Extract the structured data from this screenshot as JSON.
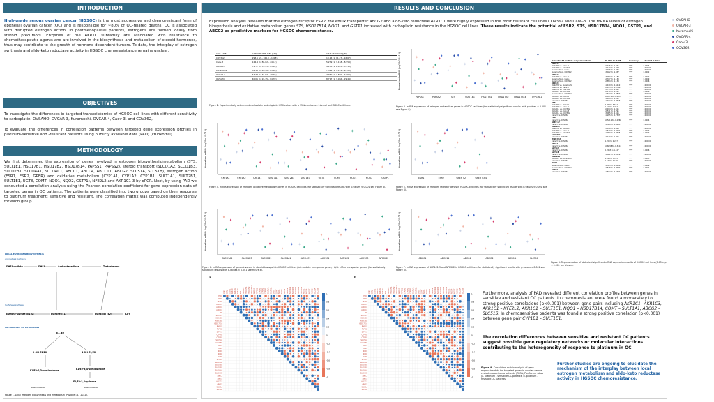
{
  "headers": {
    "intro": "INTRODUCTION",
    "objectives": "OBJECTIVES",
    "methodology": "METHODOLOGY",
    "results": "RESULTS AND CONCLUSION"
  },
  "intro": {
    "lead": "High-grade serous ovarian cancer (HGSOC)",
    "body": " is the most aggressive and chemoresistant form of epithelial ovarian cancer (OC) and is responsible for ~80% of OC-related deaths. OC is associated with disrupted estrogen action. In postmenopausal patients, estrogens are formed locally from steroid precursors. Enzymes of the AKR1C subfamily are associated with resistance to chemotherapeutic agents and are involved in the biosynthesis and metabolism of steroid hormones, thus may contribute to the growth of hormone-dependent tumors. To date, the interplay of estrogen synthesis and aldo-keto reductase activity in HGSOC chemoresistance remains unclear."
  },
  "objectives": {
    "p1": "To investigate the differences in targeted transcriptomics of HGSOC cell lines with different sensitivity to carboplatin: OVSAHO, OVCAR-3, Kuramochi, OVCAR-4, Caov-3, and COV362,",
    "p2": "To evaluate the differences in correlation patterns between targeted gene expression profiles in platinum-sensitive and -resistant patients using publicly available data (PAD) (cBioPortal)."
  },
  "methodology": {
    "body": "We first determined the expression of genes involved in estrogen biosynthesis/metabolism (STS, SULT1E1, HSD17B1, HSD17B2, HSD17B14, PAPSS1, PAPSS2), steroid transport (SLCO1A2, SLCO1B3, SLCO2B1, SLCO4A1, SLCO4C1, ABCC1, ABCC4, ABCC11, ABCG2, SLC51A, SLC51B), estrogen action (ESR1, ESR2, GPER) and oxidative metabolism (CYP1A1, CYP1A2, CYP1B1, SULT1A1, SULT2B1, SULT1E1, UGT8, COMT, NQO1, NQO2, GSTP1), NFE2L2 and AKR1C1-3 by qPCR. Next, by using PAD we conducted a correlation analysis using the Pearson correlation coefficient for gene expression data of targeted genes in OC patients. The patients were classified into two groups based on their response to platinum treatment: sensitive and resistant. The correlation matrix was computed independently for each group."
  },
  "pathway": {
    "t1": "LOCAL ESTROGEN BIOSYNTHESIS",
    "t2": "Aromatase pathway",
    "t3": "Sulfatase pathway",
    "t4": "METABOLISM OF ESTROGENS",
    "dhea": "DHEA-sulfate",
    "dhea2": "DHEA",
    "andro": "Androstenedione",
    "testo": "Testosterone",
    "e1s": "Estrone-sulfate (E1-S)",
    "e1": "Estrone (E1)",
    "e2": "Estradiol (E2)",
    "e2s": "E2-S",
    "e1e2": "E1, E2",
    "oh2": "2-OH-E1/E2",
    "oh4": "4-OH-E1/E2",
    "semi": "E1/E2-2,3-semiquinone",
    "semi2": "E1/E2-3,4-semiquinone",
    "quin": "E1/E2-3,4-quinone",
    "dna1": "DNA Adducts",
    "dna2": "DNA Adducts",
    "caption": "Figure 1. Local estrogen biosynthesis and metabolism (Pavlič et al., 2022)."
  },
  "table1": {
    "headers": [
      "CELL LINE",
      "CARBOPLATIN IC50 [µM]",
      "CISPLATIN IC50 [µM]"
    ],
    "rows": [
      [
        "COV362",
        "293.5 (21, 169.0 – 1098)",
        "13.15 (1, 11.27 – 16.67)"
      ],
      [
        "Caov-3",
        "124.4 (1, 86.02 – 244.2)",
        "5.279 (1, 3.158 – 8.559)"
      ],
      [
        "OVCAR-4",
        "72.77 (1, 59.93 – 85.63)",
        "4.158 (1, 2.953 – 5.913)"
      ],
      [
        "Kuramochi",
        "52.11 (1, 48.96 – 65.90)",
        "7.524 (1, 4.122 – 9.120)"
      ],
      [
        "OVCAR-3",
        "47.73 (1, 45.83 – 49.36)",
        "7.360 (1, 4.870 – 7.850)"
      ],
      [
        "OVSAHO",
        "40.01 (1, 26.35 – 84.39)",
        "8.717 (1, 3.966 – 29.44)"
      ]
    ]
  },
  "results": {
    "intro_a": "Expression analysis revealed that the estrogen receptor ",
    "esr2": "ESR2",
    "intro_b": ", the efflux transporter ",
    "abcg2": "ABCG2",
    "intro_c": " and aldo-keto reductase ",
    "akr": "AKR1C1",
    "intro_d": " were highly expressed in the most resistant cell lines COV362 and Caov-3. The mRNA levels of estrogen biosynthesis and oxidative metabolism genes ",
    "genes": "STS, HSD17B14, NQO1,",
    "intro_e": " and ",
    "gstp": "GSTP1",
    "intro_f": " increased with carboplatin resistance in the HGSOC cell lines. ",
    "bold": "These results indicate the potential of ESR2, STS, HSD17B14, NQO1, GSTP1, and ABCG2 as predictive markers for HGSOC chemoresistance."
  },
  "legend": [
    {
      "name": "OVSAHO",
      "color": "#c9d3e6"
    },
    {
      "name": "OVCAR-3",
      "color": "#f2b7a8"
    },
    {
      "name": "Kuramochi",
      "color": "#3aa88a"
    },
    {
      "name": "OVCAR-4",
      "color": "#2c4fa8"
    },
    {
      "name": "Caov-3",
      "color": "#d63a6a"
    },
    {
      "name": "COV362",
      "color": "#4a6fd0"
    }
  ],
  "ylabel1": "Normalized mRNA (log10x10^12)",
  "ylabel2": "Normalized mRNA (log10 x 10^12)",
  "fig2": {
    "caption": "Figure 2. Experimentally determined carboplatin and cisplatin IC50 values with a 95% confidence interval for HGSOC cell lines."
  },
  "fig3": {
    "genes": [
      "PAPSS1",
      "PAPSS2",
      "STS",
      "SULT1E1",
      "HSD17B1",
      "HSD17B2",
      "HSD17B14",
      "CYP19A1"
    ],
    "caption": "Figure 3. mRNA expression of estrogen metabolism genes in HGSOC cell lines (for statistically significant results with p-values < 0.001 see Figure 8)."
  },
  "fig4": {
    "genes": [
      "CYP1A1",
      "CYP1A2",
      "CYP1B1",
      "SULT1A1",
      "SULT2B1",
      "SULT1E1",
      "UGT8",
      "COMT",
      "NQO1",
      "NQO2",
      "GSTP1"
    ],
    "caption": "Figure 4. mRNA expression of estrogen oxidative metabolism genes in HGSOC cell lines (for statistically significant results with p-values < 0.001 see Figure 8)."
  },
  "fig5": {
    "genes": [
      "ESR1",
      "ESR2",
      "GPER v2",
      "GPER v3.4"
    ],
    "caption": "Figure 5. mRNA expression of estrogen receptor genes in HGSOC cell lines (for statistically significant results with p-values < 0.001 see Figure 8)."
  },
  "fig6": {
    "genes": [
      "SLCO1A2",
      "SLCO1B3",
      "SLCO2B1",
      "SLCO4A1",
      "SLCO4C1"
    ],
    "caption": "Figure 6. mRNA expression of genes involved in steroid transport in HGSOC cell lines (left: uptake transporter genes; right: efflux transporter genes) (for statistically significant results with p-values < 0.001 see Figure 8)."
  },
  "fig6b": {
    "genes": [
      "AKR1C1",
      "AKR1C2",
      "AKR1C3",
      "NFE2L2"
    ]
  },
  "fig7": {
    "genes": [
      "ABCC1",
      "ABCC11",
      "ABCC4",
      "ABCG2",
      "SLC51A",
      "SLC51B"
    ],
    "caption": "Figure 7. mRNA expression of AKR1C1-3 and NFE2L2 in HGSOC cell lines (for statistically significant results with p-values < 0.001 see Figure 8)."
  },
  "fig8": {
    "headers": [
      "Dunnett's T3 multiple comparisons test",
      "95.00% CI of diff.",
      "Summary",
      "Adjusted P Value"
    ],
    "rows": [
      [
        "AKR1C1",
        "",
        "",
        ""
      ],
      [
        "OVSAHO vs. Caov-3",
        "-0.475 to -1.371",
        "****",
        "0.0004"
      ],
      [
        "OVSAHO vs. COV362",
        "-2.140 to -1.927",
        "****",
        "<0.0001"
      ],
      [
        "Kuramochi vs. Caov-3",
        "-2.156 to -1.466",
        "****",
        "<0.0001"
      ],
      [
        "Kuramochi vs. COV362",
        "-3.022 to -1.837",
        "****",
        "0.0002"
      ],
      [
        "AKR1C2",
        "",
        "",
        ""
      ],
      [
        "OVSAHO vs. Caov-3",
        "-3.063 to -1.183",
        "****",
        "0.0002"
      ],
      [
        "Kuramochi vs. Caov-3",
        "-2.337 to -1.130",
        "****",
        "0.0009"
      ],
      [
        "Kuramochi vs. COV362",
        "-2.854 to -1.139",
        "****",
        "0.0006"
      ],
      [
        "AKR1C3",
        "",
        "",
        ""
      ],
      [
        "OVSAHO vs. Kuramochi",
        "-1.419 to -0.6212",
        "****",
        "<0.0001"
      ],
      [
        "OVSAHO vs. Caov-3",
        "-2.435 to -0.9748",
        "****",
        "<0.0001"
      ],
      [
        "OVSAHO vs. COV362",
        "-3.735 to -1.941",
        "****",
        "<0.0001"
      ],
      [
        "OVCAR-3 vs. COV362",
        "-2.170 to -1.012",
        "****",
        "0.0008"
      ],
      [
        "Kuramochi vs. COV362",
        "-1.677 to -0.8802",
        "****",
        "<0.0001"
      ],
      [
        "OVCAR-4 vs. Caov-3",
        "-0.8574 to -0.4978",
        "****",
        "<0.0001"
      ],
      [
        "OVCAR-4 vs. COV362",
        "-1.994 to -1.411",
        "****",
        "<0.0001"
      ],
      [
        "Caov-3 vs. COV362",
        "-1.334 to -0.7556",
        "****",
        "<0.0001"
      ],
      [
        "ESR1",
        "",
        "",
        ""
      ],
      [
        "OVSAHO vs. OVCAR-3",
        "2.067 to 3.554",
        "****",
        "<0.0001"
      ],
      [
        "OVSAHO vs. Caov-3",
        "1.108 to 1.742",
        "****",
        "<0.0001"
      ],
      [
        "OVCAR-3 vs. COV362",
        "-0.494 to -1.311",
        "****",
        "<0.0001"
      ],
      [
        "OVCAR-3 vs. Caov-3",
        "-2.531 to -1.291",
        "****",
        "<0.0001"
      ],
      [
        "OVCAR-4 vs. COV362",
        "-3.085 to -2.415",
        "****",
        "<0.0001"
      ],
      [
        "Caov-3 vs. COV362",
        "-1.205 to -0.7337",
        "****",
        "<0.0001"
      ],
      [
        "ESR2",
        "",
        "",
        ""
      ],
      [
        "Caov-3 vs. COV362",
        "-0.5211 to -0.2266",
        "****",
        "0.0004"
      ],
      [
        "GPER v2",
        "",
        "",
        ""
      ],
      [
        "Caov-3 vs. COV362",
        "-1.308 to -0.9465",
        "****",
        "<0.0001"
      ],
      [
        "SULT1E1",
        "",
        "",
        ""
      ],
      [
        "OVSAHO vs. OVCAR-3",
        "-3.016 to -1.846",
        "****",
        "<0.0001"
      ],
      [
        "OVSAHO vs. Caov-3",
        "-1.519 to -0.4031",
        "****",
        "0.0007"
      ],
      [
        "OVSAHO vs. COV362",
        "-1.753 to -0.7605",
        "****",
        "0.0007"
      ],
      [
        "SLCO4C1",
        "",
        "",
        ""
      ],
      [
        "Caov-3 vs. COV362",
        "-2.130 to -1.005",
        "****",
        "<0.0001"
      ],
      [
        "HSD17B2",
        "",
        "",
        ""
      ],
      [
        "Caov-3 vs. COV362",
        "1.700 to 2.237",
        "****",
        "<0.0001"
      ],
      [
        "ABCC1",
        "",
        "",
        ""
      ],
      [
        "Caov-3 vs. COV362",
        "-0.6038 to -0.3114",
        "****",
        "<0.0001"
      ],
      [
        "SLC51A",
        "",
        "",
        ""
      ],
      [
        "Caov-3 vs. COV362",
        "0.7663 to 1.447",
        "****",
        "0.0006"
      ],
      [
        "SLC51B",
        "",
        "",
        ""
      ],
      [
        "Caov-3 vs. COV362",
        "-1.822 to -0.6519",
        "****",
        "<0.0001"
      ],
      [
        "SULT2B1",
        "",
        "",
        ""
      ],
      [
        "OVCAR-3 vs. Kuramochi",
        "1.449 to 3.133",
        "****",
        "0.0003"
      ],
      [
        "Caov-3 vs. COV362",
        "1.648 to 2.185",
        "****",
        "<0.0001"
      ],
      [
        "NQO1",
        "",
        "",
        ""
      ],
      [
        "Kuramochi vs. Caov-3",
        "-1.525 to -0.9008",
        "****",
        "0.0009"
      ],
      [
        "Kuramochi vs. COV362",
        "-2.528 to -0.7972",
        "****",
        "0.0001"
      ],
      [
        "GSTP1",
        "",
        "",
        ""
      ],
      [
        "Caov-3 vs. COV362",
        "-1.832 to -0.8431",
        "****",
        "<0.0001"
      ]
    ],
    "caption": "Figure 8. Representation of statistical significant mRNA expression results of HGSOC cell lines (0.05 > p < 0.001 are shown)."
  },
  "fig9": {
    "a": "a.",
    "b": "b.",
    "caption_a": "Figure 9. ",
    "caption_b": "Correlation matrix analysis of gene expression data for targeted genes in ovarian serous cystadenocarcinoma patients (TCGA, PanCancer Atlas (a. platinum - sensitive OC patients, b. platinum - resistant OC patients)"
  },
  "hm_genes": [
    "ESR1",
    "ESR2",
    "GPER1",
    "AKR1C1",
    "AKR1C2",
    "AKR1C3",
    "STS",
    "SULT1E1",
    "HSD17B1",
    "HSD17B2",
    "HSD17B14",
    "PAPSS1",
    "PAPSS2",
    "CYP1A1",
    "CYP1A2",
    "CYP1B1",
    "SULT1A1",
    "SULT2B1",
    "UGT8",
    "COMT",
    "NQO1",
    "NQO2",
    "GSTP1",
    "NFE2L2",
    "SLCO1A2",
    "SLCO1B3",
    "SLCO2B1",
    "SLCO4A1",
    "SLCO4C1",
    "ABCC1",
    "ABCC4",
    "ABCC11",
    "ABCG2",
    "SLC51A",
    "SLC51B"
  ],
  "hm_scale": [
    "1",
    "0.8",
    "0.6",
    "0.4",
    "0.2",
    "0",
    "-0.2",
    "-0.4",
    "-0.6",
    "-0.8",
    "-1"
  ],
  "conclusion": {
    "p1a": "Furthermore, analysis of PAD revealed different correlation profiles between genes in sensitive and resistant OC patients. In chemoresistant were found a moderately to strong positive correlations (p<0.001) between gene pairs including ",
    "p1b": "AKR1C1– AKR1C3, AKR1C1 – NFE2L2, AKR1C1 – SULT1E1, NQO1 – HSD17B14, COMT – SULT1A1, ABCG2 – SLC51S.",
    "p1c": " In chemosensitive patients was found a strong positive correlation (p<0.001) between gene pair ",
    "p1d": "CYP1B1 – SULT1E1.",
    "p2": "The correlation differences between sensitive and resistant OC patients suggest possible gene regulatory networks or molecular interactions contributing to the heterogeneity of response to platinum in OC.",
    "p3": "Further studies are ongoing to elucidate the mechanism of the interplay between local estrogen metabolism and aldo-keto reductase activity in HGSOC chemoresistance."
  }
}
